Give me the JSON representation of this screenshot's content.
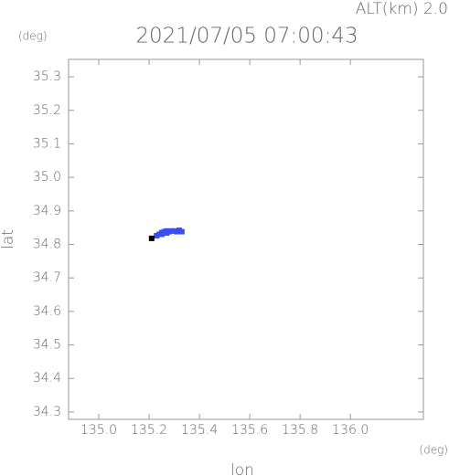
{
  "chart_data": {
    "type": "scatter",
    "title": "2021/07/05 07:00:43",
    "annotation": "ALT(km) 2.0",
    "y_unit": "(deg)",
    "x_unit": "(deg)",
    "xlabel": "lon",
    "ylabel": "lat",
    "xlim": [
      134.88,
      136.29
    ],
    "ylim": [
      34.278,
      35.352
    ],
    "xticks": [
      {
        "value": 135,
        "label": "135.0"
      },
      135.2,
      135.4,
      135.6,
      135.8,
      {
        "value": 136,
        "label": "136.0"
      }
    ],
    "yticks": [
      34.3,
      34.4,
      34.5,
      34.6,
      34.7,
      34.8,
      34.9,
      {
        "value": 35,
        "label": "35.0"
      },
      35.1,
      35.2,
      35.3
    ],
    "series": [
      {
        "color": "#3a4ff0",
        "x": [
          135.23,
          135.24,
          135.25,
          135.25,
          135.26,
          135.27,
          135.27,
          135.28,
          135.29,
          135.3,
          135.31,
          135.32,
          135.33
        ],
        "y": [
          34.826,
          34.83,
          34.835,
          34.83,
          34.838,
          34.84,
          34.834,
          34.838,
          34.84,
          34.84,
          34.838,
          34.842,
          34.838
        ]
      },
      {
        "color": "#000000",
        "x": [
          135.21
        ],
        "y": [
          34.818
        ]
      }
    ]
  }
}
